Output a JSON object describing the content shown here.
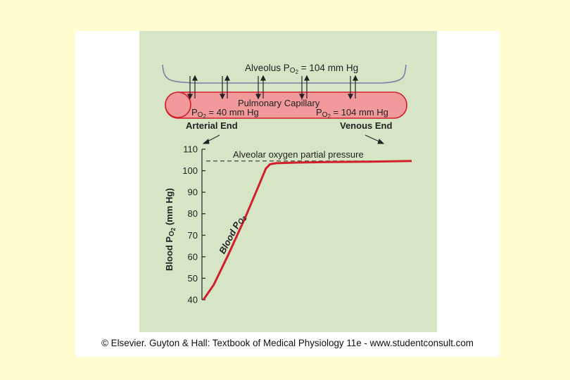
{
  "alveolus": {
    "label_prefix": "Alveolus P",
    "label_sub": "O",
    "label_subsub": "2",
    "label_suffix": " = 104 mm Hg"
  },
  "capillary": {
    "label": "Pulmonary Capillary",
    "left_prefix": "P",
    "left_sub": "O",
    "left_subsub": "2",
    "left_suffix": " = 40 mm Hg",
    "right_prefix": "P",
    "right_sub": "O",
    "right_subsub": "2",
    "right_suffix": " = 104 mm Hg"
  },
  "ends": {
    "arterial": "Arterial End",
    "venous": "Venous End"
  },
  "colors": {
    "capillary_fill": "#f2999c",
    "capillary_stroke": "#d21f2b",
    "curve": "#d21f2b",
    "alveolus_stroke": "#7a7fa6"
  },
  "chart_data": {
    "type": "line",
    "title": "",
    "ylabel_prefix": "Blood P",
    "ylabel_sub": "O",
    "ylabel_subsub": "2",
    "ylabel_suffix": " (mm Hg)",
    "ylim": [
      40,
      110
    ],
    "yticks": [
      "110",
      "100",
      "90",
      "80",
      "70",
      "60",
      "50",
      "40"
    ],
    "reference_line": {
      "label": "Alveolar oxygen partial pressure",
      "value": 104.5
    },
    "series_label_prefix": "Blood P",
    "series_label_sub": "O",
    "series_label_subsub": "2",
    "series": [
      {
        "x": [
          0,
          0.05,
          0.12,
          0.2,
          0.27,
          0.3,
          0.32,
          0.35,
          0.45,
          0.6,
          0.8,
          1.0
        ],
        "values": [
          40,
          47,
          61,
          78,
          94,
          101,
          103,
          103.5,
          103.8,
          104,
          104.2,
          104.5
        ]
      }
    ]
  },
  "caption": "© Elsevier. Guyton & Hall: Textbook of Medical Physiology 11e - www.studentconsult.com"
}
